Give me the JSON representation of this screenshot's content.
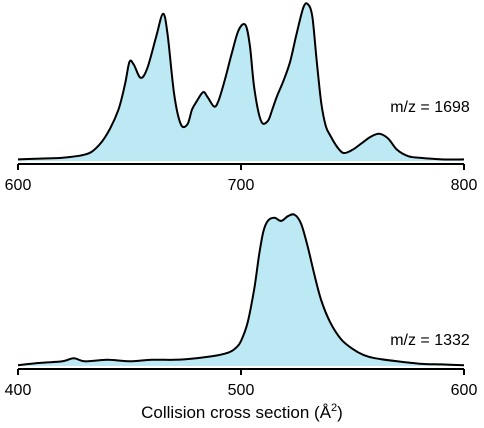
{
  "figure": {
    "xlabel_main": "Collision cross section (Å",
    "xlabel_sup": "2",
    "xlabel_close": ")"
  },
  "colors": {
    "fill": "#bce9f3",
    "stroke": "#000000"
  },
  "chart_data": [
    {
      "type": "area",
      "title": "",
      "annotation": "m/z = 1698",
      "xlabel": "",
      "ylabel": "",
      "xlim": [
        600,
        800
      ],
      "ylim": [
        0,
        1
      ],
      "xticks": [
        600,
        700,
        800
      ],
      "tick_labels": [
        "600",
        "700",
        "800"
      ],
      "grid": false,
      "x": [
        600,
        610,
        620,
        630,
        635,
        640,
        645,
        648,
        650,
        652,
        655,
        658,
        662,
        665,
        667,
        670,
        673,
        676,
        678,
        680,
        683,
        685,
        688,
        690,
        693,
        696,
        699,
        702,
        704,
        706,
        709,
        712,
        714,
        716,
        719,
        722,
        725,
        728,
        730,
        732,
        734,
        736,
        738,
        740,
        743,
        746,
        750,
        754,
        758,
        762,
        766,
        770,
        775,
        780,
        790,
        800
      ],
      "y": [
        0.01,
        0.015,
        0.02,
        0.04,
        0.08,
        0.17,
        0.32,
        0.48,
        0.62,
        0.6,
        0.52,
        0.58,
        0.78,
        0.92,
        0.8,
        0.42,
        0.23,
        0.23,
        0.32,
        0.37,
        0.43,
        0.4,
        0.34,
        0.38,
        0.52,
        0.68,
        0.82,
        0.85,
        0.72,
        0.45,
        0.25,
        0.25,
        0.32,
        0.4,
        0.5,
        0.62,
        0.8,
        0.96,
        0.98,
        0.9,
        0.62,
        0.36,
        0.22,
        0.16,
        0.09,
        0.05,
        0.07,
        0.11,
        0.15,
        0.17,
        0.14,
        0.07,
        0.03,
        0.02,
        0.01,
        0.01
      ]
    },
    {
      "type": "area",
      "title": "",
      "annotation": "m/z = 1332",
      "xlabel": "Collision cross section (Å2)",
      "ylabel": "",
      "xlim": [
        400,
        600
      ],
      "ylim": [
        0,
        1
      ],
      "xticks": [
        400,
        500,
        600
      ],
      "tick_labels": [
        "400",
        "500",
        "600"
      ],
      "grid": false,
      "x": [
        400,
        410,
        420,
        425,
        430,
        440,
        450,
        460,
        470,
        480,
        490,
        495,
        498,
        500,
        503,
        506,
        508,
        510,
        512,
        515,
        518,
        521,
        524,
        527,
        530,
        533,
        536,
        540,
        545,
        550,
        555,
        560,
        570,
        580,
        590,
        600
      ],
      "y": [
        0.005,
        0.02,
        0.03,
        0.05,
        0.03,
        0.04,
        0.03,
        0.04,
        0.04,
        0.05,
        0.07,
        0.09,
        0.12,
        0.16,
        0.28,
        0.5,
        0.7,
        0.86,
        0.93,
        0.95,
        0.93,
        0.96,
        0.97,
        0.91,
        0.76,
        0.58,
        0.42,
        0.28,
        0.17,
        0.11,
        0.07,
        0.05,
        0.03,
        0.015,
        0.01,
        0.005
      ]
    }
  ]
}
